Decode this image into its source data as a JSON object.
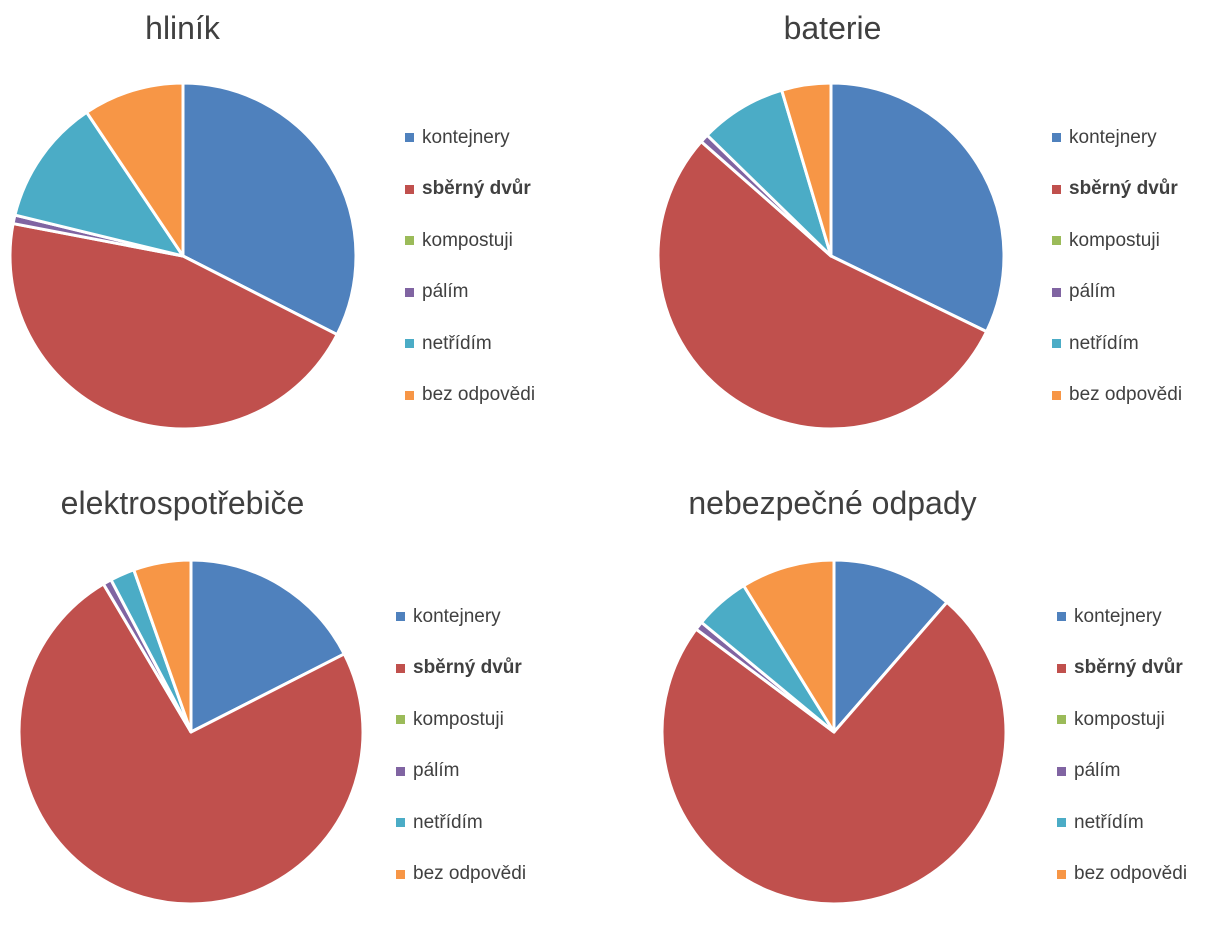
{
  "legend": {
    "items": [
      {
        "label": "kontejnery",
        "color": "#4F81BD",
        "bold": false
      },
      {
        "label": "sběrný dvůr",
        "color": "#C0504D",
        "bold": true
      },
      {
        "label": "kompostuji",
        "color": "#9BBB59",
        "bold": false
      },
      {
        "label": "pálím",
        "color": "#8064A2",
        "bold": false
      },
      {
        "label": "netřídím",
        "color": "#4BACC6",
        "bold": false
      },
      {
        "label": "bez odpovědi",
        "color": "#F79646",
        "bold": false
      }
    ]
  },
  "chart_data": [
    {
      "type": "pie",
      "title": "hliník",
      "categories": [
        "kontejnery",
        "sběrný dvůr",
        "kompostuji",
        "pálím",
        "netřídím",
        "bez odpovědi"
      ],
      "values": [
        32.5,
        45.5,
        0,
        0.8,
        11.8,
        9.4
      ],
      "legend_position": "right"
    },
    {
      "type": "pie",
      "title": "baterie",
      "categories": [
        "kontejnery",
        "sběrný dvůr",
        "kompostuji",
        "pálím",
        "netřídím",
        "bez odpovědi"
      ],
      "values": [
        32.2,
        54.3,
        0,
        0.8,
        8.1,
        4.6
      ],
      "legend_position": "right"
    },
    {
      "type": "pie",
      "title": "elektrospotřebiče",
      "categories": [
        "kontejnery",
        "sběrný dvůr",
        "kompostuji",
        "pálím",
        "netřídím",
        "bez odpovědi"
      ],
      "values": [
        17.5,
        74.0,
        0,
        0.8,
        2.3,
        5.4
      ],
      "legend_position": "right"
    },
    {
      "type": "pie",
      "title": "nebezpečné odpady",
      "categories": [
        "kontejnery",
        "sběrný dvůr",
        "kompostuji",
        "pálím",
        "netřídím",
        "bez odpovědi"
      ],
      "values": [
        11.4,
        73.8,
        0,
        0.8,
        5.2,
        8.8
      ],
      "legend_position": "right"
    }
  ]
}
